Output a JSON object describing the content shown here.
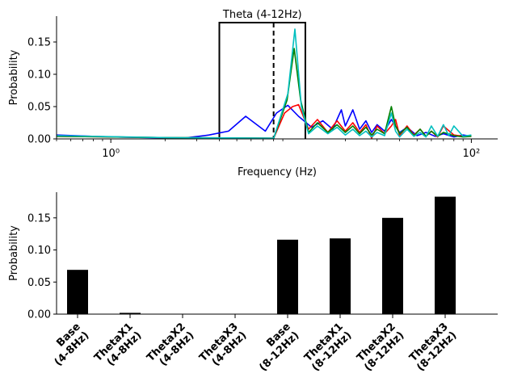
{
  "chart_data": [
    {
      "type": "line",
      "xscale": "log",
      "xlabel": "Frequency (Hz)",
      "ylabel": "Probability",
      "xlim": [
        0.5,
        140
      ],
      "ylim": [
        0,
        0.19
      ],
      "x_ticks": [
        1,
        100
      ],
      "x_tick_labels": [
        "10⁰",
        "10²"
      ],
      "y_ticks": [
        0,
        0.05,
        0.1,
        0.15
      ],
      "y_tick_labels": [
        "0.00",
        "0.05",
        "0.10",
        "0.15"
      ],
      "grid": false,
      "annotation": {
        "label": "Theta (4-12Hz)",
        "band": [
          4,
          12
        ],
        "band_top": 0.18,
        "dashed_line_x": 8
      },
      "series": [
        {
          "color": "#0000ff",
          "x": [
            0.5,
            1,
            2.5,
            3.5,
            4.5,
            5.6,
            7.2,
            8.3,
            9.6,
            11,
            13,
            15,
            17,
            19,
            20,
            22,
            24,
            26,
            28,
            30,
            33,
            36,
            40,
            44,
            50,
            56,
            63,
            70,
            80,
            90,
            100
          ],
          "y": [
            0.006,
            0.003,
            0.001,
            0.006,
            0.012,
            0.035,
            0.012,
            0.04,
            0.052,
            0.035,
            0.018,
            0.028,
            0.015,
            0.045,
            0.02,
            0.045,
            0.015,
            0.028,
            0.01,
            0.022,
            0.012,
            0.03,
            0.01,
            0.018,
            0.005,
            0.01,
            0.004,
            0.008,
            0.003,
            0.006,
            0.004
          ]
        },
        {
          "color": "#ff0000",
          "x": [
            0.5,
            2,
            8,
            9.2,
            10.2,
            11,
            12.5,
            14,
            16,
            18,
            20,
            22,
            24,
            26,
            28,
            30,
            33,
            36,
            38,
            40,
            44,
            48,
            52,
            56,
            60,
            65,
            70,
            80,
            90,
            100
          ],
          "y": [
            0.004,
            0.002,
            0.001,
            0.04,
            0.05,
            0.053,
            0.015,
            0.03,
            0.01,
            0.028,
            0.012,
            0.025,
            0.01,
            0.022,
            0.001,
            0.02,
            0.008,
            0.02,
            0.03,
            0.005,
            0.02,
            0.006,
            0.015,
            0.004,
            0.012,
            0.003,
            0.02,
            0.006,
            0.004,
            0.005
          ]
        },
        {
          "color": "#008000",
          "x": [
            0.5,
            2,
            8,
            9.5,
            10.4,
            11.3,
            12.5,
            14,
            16,
            18,
            20,
            22,
            24,
            26,
            28,
            30,
            33,
            36,
            38,
            40,
            44,
            48,
            52,
            56,
            60,
            65,
            70,
            80,
            90,
            100
          ],
          "y": [
            0.004,
            0.002,
            0.001,
            0.06,
            0.14,
            0.06,
            0.01,
            0.025,
            0.01,
            0.022,
            0.01,
            0.02,
            0.008,
            0.018,
            0.006,
            0.015,
            0.008,
            0.05,
            0.02,
            0.008,
            0.018,
            0.005,
            0.015,
            0.004,
            0.012,
            0.004,
            0.01,
            0.005,
            0.003,
            0.004
          ]
        },
        {
          "color": "#00bfbf",
          "x": [
            0.5,
            2,
            8,
            9.6,
            10.5,
            11.4,
            12.5,
            14,
            16,
            18,
            20,
            22,
            24,
            26,
            28,
            30,
            33,
            36,
            38,
            40,
            44,
            48,
            52,
            56,
            60,
            65,
            70,
            75,
            80,
            90,
            100
          ],
          "y": [
            0.005,
            0.002,
            0.001,
            0.07,
            0.17,
            0.05,
            0.008,
            0.02,
            0.008,
            0.018,
            0.006,
            0.015,
            0.005,
            0.012,
            0.003,
            0.01,
            0.005,
            0.04,
            0.012,
            0.003,
            0.015,
            0.004,
            0.01,
            0.003,
            0.02,
            0.004,
            0.022,
            0.005,
            0.02,
            0.004,
            0.006
          ]
        }
      ]
    },
    {
      "type": "bar",
      "ylabel": "Probability",
      "ylim": [
        0,
        0.19
      ],
      "y_ticks": [
        0,
        0.05,
        0.1,
        0.15
      ],
      "y_tick_labels": [
        "0.00",
        "0.05",
        "0.10",
        "0.15"
      ],
      "bar_color": "#000000",
      "grid": false,
      "categories": [
        [
          "Base",
          "(4-8Hz)"
        ],
        [
          "ThetaX1",
          "(4-8Hz)"
        ],
        [
          "ThetaX2",
          "(4-8Hz)"
        ],
        [
          "ThetaX3",
          "(4-8Hz)"
        ],
        [
          "Base",
          "(8-12Hz)"
        ],
        [
          "ThetaX1",
          "(8-12Hz)"
        ],
        [
          "ThetaX2",
          "(8-12Hz)"
        ],
        [
          "ThetaX3",
          "(8-12Hz)"
        ]
      ],
      "values": [
        0.069,
        0.002,
        0.0,
        0.0,
        0.116,
        0.118,
        0.15,
        0.183
      ]
    }
  ]
}
